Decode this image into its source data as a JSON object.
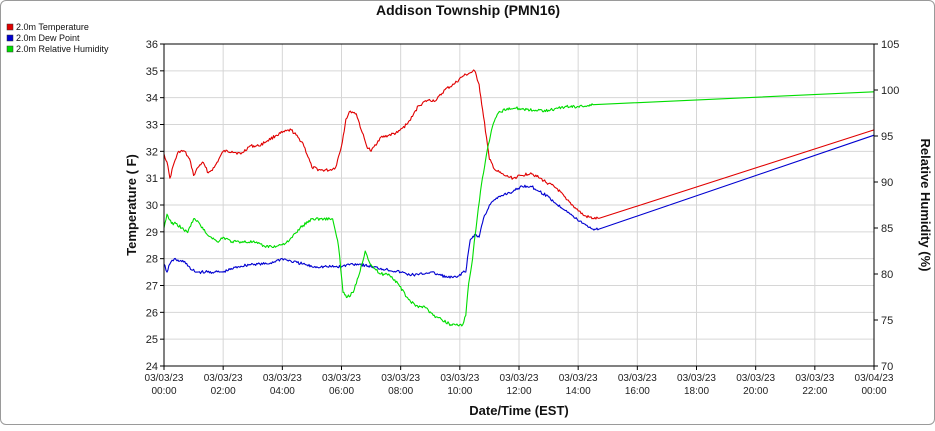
{
  "chart_data": {
    "type": "line",
    "title": "Addison Township (PMN16)",
    "xlabel": "Date/Time (EST)",
    "ylabel_left": "Temperature ( F)",
    "ylabel_right": "Relative Humidity (%)",
    "ylim_left": [
      24,
      36
    ],
    "ylim_right": [
      70,
      105
    ],
    "xlim_hours": [
      0,
      24
    ],
    "grid": true,
    "legend_position": "top-left",
    "x_tick_labels": [
      [
        "03/03/23",
        "00:00"
      ],
      [
        "03/03/23",
        "02:00"
      ],
      [
        "03/03/23",
        "04:00"
      ],
      [
        "03/03/23",
        "06:00"
      ],
      [
        "03/03/23",
        "08:00"
      ],
      [
        "03/03/23",
        "10:00"
      ],
      [
        "03/03/23",
        "12:00"
      ],
      [
        "03/03/23",
        "14:00"
      ],
      [
        "03/03/23",
        "16:00"
      ],
      [
        "03/03/23",
        "18:00"
      ],
      [
        "03/03/23",
        "20:00"
      ],
      [
        "03/03/23",
        "22:00"
      ],
      [
        "03/04/23",
        "00:00"
      ]
    ],
    "y_ticks_left": [
      24,
      25,
      26,
      27,
      28,
      29,
      30,
      31,
      32,
      33,
      34,
      35,
      36
    ],
    "y_ticks_right": [
      70,
      75,
      80,
      85,
      90,
      95,
      100,
      105
    ],
    "series": [
      {
        "name": "2.0m Temperature",
        "axis": "left",
        "color": "#e00000",
        "x": [
          0,
          0.1,
          0.2,
          0.35,
          0.5,
          0.7,
          0.9,
          1.0,
          1.15,
          1.3,
          1.5,
          1.7,
          1.85,
          2.0,
          2.3,
          2.6,
          2.9,
          3.2,
          3.5,
          3.8,
          4.0,
          4.3,
          4.7,
          5.0,
          5.3,
          5.6,
          5.8,
          6.0,
          6.15,
          6.3,
          6.5,
          6.7,
          6.85,
          7.0,
          7.3,
          7.6,
          7.9,
          8.2,
          8.4,
          8.6,
          8.9,
          9.2,
          9.5,
          9.8,
          10.1,
          10.3,
          10.5,
          10.65,
          10.8,
          11.0,
          11.2,
          11.5,
          11.8,
          12.1,
          12.4,
          12.7,
          13.0,
          13.3,
          13.6,
          13.9,
          14.2,
          14.5,
          14.7,
          24.0
        ],
        "values": [
          31.9,
          31.6,
          31.0,
          31.6,
          32.0,
          32.0,
          31.6,
          31.1,
          31.4,
          31.6,
          31.2,
          31.4,
          31.7,
          32.0,
          32.0,
          31.9,
          32.2,
          32.2,
          32.4,
          32.6,
          32.7,
          32.8,
          32.3,
          31.4,
          31.3,
          31.3,
          31.4,
          32.2,
          33.2,
          33.5,
          33.4,
          32.7,
          32.2,
          32.0,
          32.5,
          32.6,
          32.7,
          33.0,
          33.3,
          33.7,
          33.9,
          33.9,
          34.3,
          34.5,
          34.8,
          34.9,
          35.0,
          34.5,
          33.3,
          31.7,
          31.3,
          31.1,
          31.0,
          31.1,
          31.2,
          31.0,
          30.8,
          30.6,
          30.2,
          29.9,
          29.6,
          29.5,
          29.5,
          32.8
        ]
      },
      {
        "name": "2.0m Dew Point",
        "axis": "left",
        "color": "#0000d0",
        "x": [
          0,
          0.1,
          0.2,
          0.35,
          0.5,
          0.7,
          0.9,
          1.1,
          1.4,
          1.7,
          2.0,
          2.5,
          3.0,
          3.5,
          4.0,
          4.3,
          4.7,
          5.0,
          5.5,
          6.0,
          6.3,
          6.6,
          7.0,
          7.5,
          8.0,
          8.3,
          8.6,
          9.0,
          9.3,
          9.6,
          9.9,
          10.1,
          10.2,
          10.35,
          10.5,
          10.65,
          10.8,
          11.0,
          11.2,
          11.5,
          11.8,
          12.1,
          12.4,
          12.7,
          13.0,
          13.3,
          13.6,
          13.9,
          14.2,
          14.5,
          14.7,
          24.0
        ],
        "values": [
          27.8,
          27.5,
          27.8,
          28.0,
          27.9,
          27.9,
          27.6,
          27.5,
          27.5,
          27.5,
          27.5,
          27.7,
          27.8,
          27.8,
          28.0,
          27.9,
          27.8,
          27.7,
          27.7,
          27.7,
          27.8,
          27.8,
          27.7,
          27.6,
          27.5,
          27.4,
          27.4,
          27.5,
          27.4,
          27.3,
          27.3,
          27.5,
          27.5,
          28.7,
          28.9,
          28.8,
          29.5,
          30.0,
          30.2,
          30.4,
          30.5,
          30.7,
          30.7,
          30.5,
          30.3,
          30.0,
          29.8,
          29.5,
          29.3,
          29.1,
          29.1,
          32.6
        ]
      },
      {
        "name": "2.0m Relative Humidity",
        "axis": "right",
        "color": "#00dd00",
        "x": [
          0,
          0.1,
          0.25,
          0.4,
          0.6,
          0.8,
          1.0,
          1.2,
          1.4,
          1.6,
          1.8,
          2.0,
          2.3,
          2.6,
          3.0,
          3.4,
          3.8,
          4.2,
          4.6,
          5.0,
          5.4,
          5.7,
          5.9,
          6.05,
          6.2,
          6.4,
          6.6,
          6.8,
          7.0,
          7.3,
          7.6,
          7.9,
          8.2,
          8.5,
          8.8,
          9.1,
          9.4,
          9.7,
          10.0,
          10.1,
          10.2,
          10.3,
          10.4,
          10.55,
          10.7,
          10.9,
          11.1,
          11.3,
          11.6,
          12.0,
          12.5,
          13.0,
          13.3,
          13.6,
          14.0,
          14.5,
          24.0
        ],
        "values": [
          85.0,
          86.5,
          85.5,
          85.5,
          85.0,
          84.5,
          86.0,
          85.5,
          84.5,
          84.0,
          83.5,
          84.0,
          83.5,
          83.5,
          83.5,
          83.0,
          83.0,
          83.5,
          85.0,
          86.0,
          86.0,
          86.0,
          83.0,
          78.0,
          77.5,
          78.0,
          80.0,
          82.5,
          81.0,
          80.0,
          80.0,
          79.0,
          77.5,
          76.5,
          76.5,
          75.5,
          75.0,
          74.5,
          74.5,
          74.5,
          75.5,
          79.0,
          81.0,
          85.0,
          89.0,
          93.0,
          96.0,
          97.5,
          98.0,
          98.0,
          97.8,
          97.8,
          98.0,
          98.2,
          98.2,
          98.4,
          99.8
        ]
      }
    ]
  }
}
